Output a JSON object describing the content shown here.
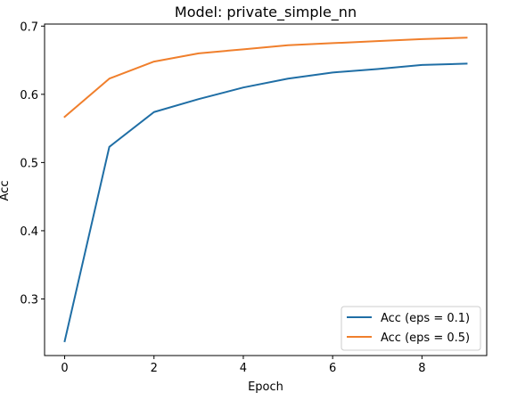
{
  "chart_data": {
    "type": "line",
    "title": "Model: private_simple_nn",
    "xlabel": "Epoch",
    "ylabel": "Acc",
    "xlim": [
      -0.45,
      9.45
    ],
    "ylim": [
      0.217,
      0.703
    ],
    "xticks": [
      0,
      2,
      4,
      6,
      8
    ],
    "yticks": [
      0.3,
      0.4,
      0.5,
      0.6,
      0.7
    ],
    "x": [
      0,
      1,
      2,
      3,
      4,
      5,
      6,
      7,
      8,
      9
    ],
    "series": [
      {
        "name": "Acc (eps = 0.1)",
        "color": "#1f6ea5",
        "values": [
          0.238,
          0.523,
          0.574,
          0.593,
          0.61,
          0.623,
          0.632,
          0.637,
          0.643,
          0.645
        ]
      },
      {
        "name": "Acc (eps = 0.5)",
        "color": "#f07f2c",
        "values": [
          0.567,
          0.623,
          0.648,
          0.66,
          0.666,
          0.672,
          0.675,
          0.678,
          0.681,
          0.683
        ]
      }
    ],
    "legend": "lower-right",
    "grid": false
  }
}
